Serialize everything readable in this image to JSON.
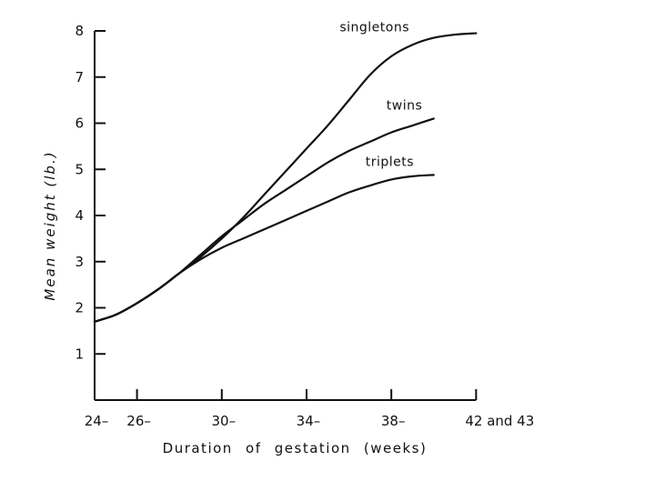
{
  "chart_data": {
    "type": "line",
    "xlabel": "Duration of gestation (weeks)",
    "ylabel": "Mean weight (lb.)",
    "xlim": [
      24,
      42.5
    ],
    "ylim": [
      0,
      8
    ],
    "x_ticks": [
      {
        "value": 24,
        "label": "24–"
      },
      {
        "value": 26,
        "label": "26–"
      },
      {
        "value": 30,
        "label": "30–"
      },
      {
        "value": 34,
        "label": "34–"
      },
      {
        "value": 38,
        "label": "38–"
      },
      {
        "value": 42,
        "label": "42 and 43"
      }
    ],
    "y_ticks": [
      {
        "value": 1,
        "label": "1"
      },
      {
        "value": 2,
        "label": "2"
      },
      {
        "value": 3,
        "label": "3"
      },
      {
        "value": 4,
        "label": "4"
      },
      {
        "value": 5,
        "label": "5"
      },
      {
        "value": 6,
        "label": "6"
      },
      {
        "value": 7,
        "label": "7"
      },
      {
        "value": 8,
        "label": "8"
      }
    ],
    "grid": false,
    "series": [
      {
        "name": "singletons",
        "x": [
          24,
          25,
          26,
          27,
          28,
          29,
          30,
          31,
          32,
          33,
          34,
          35,
          36,
          37,
          38,
          39,
          40,
          41,
          42
        ],
        "y": [
          1.7,
          1.85,
          2.1,
          2.4,
          2.75,
          3.1,
          3.5,
          3.95,
          4.45,
          4.95,
          5.45,
          5.95,
          6.5,
          7.05,
          7.45,
          7.7,
          7.85,
          7.92,
          7.95
        ]
      },
      {
        "name": "twins",
        "x": [
          24,
          25,
          26,
          27,
          28,
          29,
          30,
          31,
          32,
          33,
          34,
          35,
          36,
          37,
          38,
          39,
          40
        ],
        "y": [
          1.7,
          1.85,
          2.1,
          2.4,
          2.75,
          3.15,
          3.55,
          3.9,
          4.25,
          4.55,
          4.85,
          5.15,
          5.4,
          5.6,
          5.8,
          5.95,
          6.1
        ]
      },
      {
        "name": "triplets",
        "x": [
          24,
          25,
          26,
          27,
          28,
          29,
          30,
          31,
          32,
          33,
          34,
          35,
          36,
          37,
          38,
          39,
          40
        ],
        "y": [
          1.7,
          1.85,
          2.1,
          2.4,
          2.75,
          3.05,
          3.3,
          3.5,
          3.7,
          3.9,
          4.1,
          4.3,
          4.5,
          4.65,
          4.78,
          4.85,
          4.88
        ]
      }
    ]
  }
}
